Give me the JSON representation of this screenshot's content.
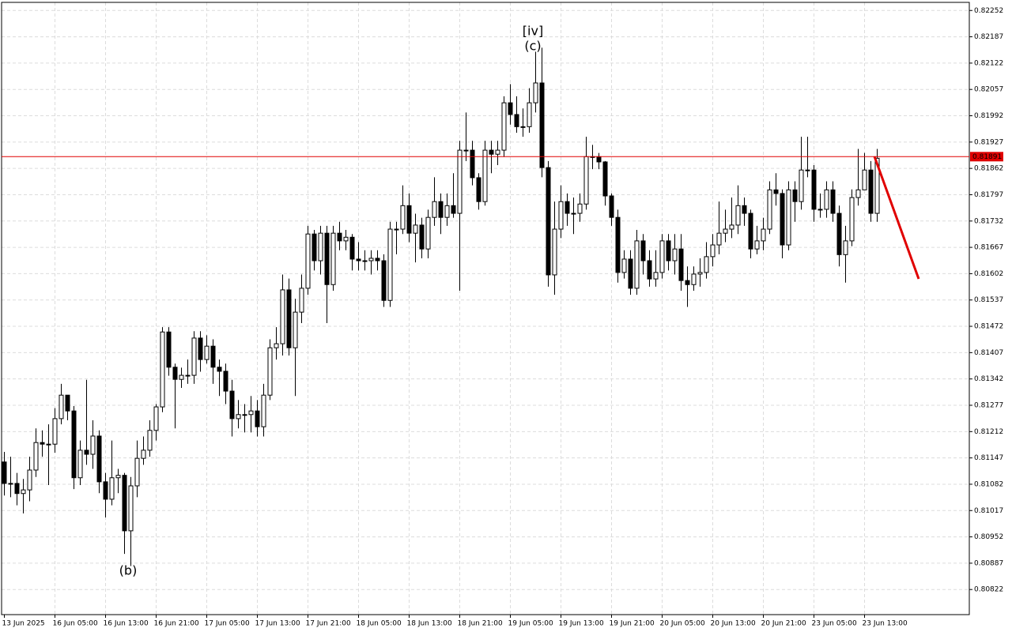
{
  "chart_data": {
    "type": "candlestick",
    "categories": [
      "13 Jun 2025",
      null,
      null,
      null,
      null,
      null,
      null,
      null,
      "16 Jun 05:00",
      null,
      null,
      null,
      null,
      null,
      null,
      null,
      "16 Jun 13:00",
      null,
      null,
      null,
      null,
      null,
      null,
      null,
      "16 Jun 21:00",
      null,
      null,
      null,
      null,
      null,
      null,
      null,
      "17 Jun 05:00",
      null,
      null,
      null,
      null,
      null,
      null,
      null,
      "17 Jun 13:00",
      null,
      null,
      null,
      null,
      null,
      null,
      null,
      "17 Jun 21:00",
      null,
      null,
      null,
      null,
      null,
      null,
      null,
      "18 Jun 05:00",
      null,
      null,
      null,
      null,
      null,
      null,
      null,
      "18 Jun 13:00",
      null,
      null,
      null,
      null,
      null,
      null,
      null,
      "18 Jun 21:00",
      null,
      null,
      null,
      null,
      null,
      null,
      null,
      "19 Jun 05:00",
      null,
      null,
      null,
      null,
      null,
      null,
      null,
      "19 Jun 13:00",
      null,
      null,
      null,
      null,
      null,
      null,
      null,
      "19 Jun 21:00",
      null,
      null,
      null,
      null,
      null,
      null,
      null,
      "20 Jun 05:00",
      null,
      null,
      null,
      null,
      null,
      null,
      null,
      "20 Jun 13:00",
      null,
      null,
      null,
      null,
      null,
      null,
      null,
      "20 Jun 21:00",
      null,
      null,
      null,
      null,
      null,
      null,
      null,
      "23 Jun 05:00",
      null,
      null,
      null,
      null,
      null,
      null,
      null,
      "23 Jun 13:00",
      null,
      null
    ],
    "open": [
      0.81137,
      0.81084,
      0.81084,
      0.81059,
      0.81068,
      0.81117,
      0.81185,
      0.81181,
      0.81181,
      0.81244,
      0.81302,
      0.81263,
      0.81098,
      0.81166,
      0.81156,
      0.81201,
      0.81088,
      0.81045,
      0.81098,
      0.81104,
      0.80967,
      0.81078,
      0.81146,
      0.81166,
      0.81215,
      0.81273,
      0.81458,
      0.81371,
      0.81341,
      0.81351,
      0.81351,
      0.81443,
      0.8139,
      0.81423,
      0.81371,
      0.81361,
      0.81312,
      0.81244,
      0.81254,
      0.81254,
      0.81263,
      0.81224,
      0.81302,
      0.81419,
      0.81429,
      0.81562,
      0.81419,
      0.81507,
      0.81566,
      0.817,
      0.81634,
      0.81702,
      0.81575,
      0.81702,
      0.81683,
      0.81692,
      0.81638,
      0.81634,
      0.81634,
      0.8164,
      0.81634,
      0.81536,
      0.81712,
      0.81712,
      0.8177,
      0.81702,
      0.81722,
      0.81663,
      0.81741,
      0.8178,
      0.81741,
      0.8177,
      0.81751,
      0.81907,
      0.81907,
      0.81839,
      0.8178,
      0.81907,
      0.81897,
      0.81907,
      0.82024,
      0.81995,
      0.81965,
      0.81965,
      0.82024,
      0.82073,
      0.81864,
      0.81599,
      0.81712,
      0.8178,
      0.81751,
      0.81751,
      0.81774,
      0.81891,
      0.81891,
      0.81878,
      0.81794,
      0.81741,
      0.81605,
      0.81638,
      0.81566,
      0.81683,
      0.81634,
      0.81589,
      0.81605,
      0.81683,
      0.81634,
      0.81663,
      0.81585,
      0.81575,
      0.81601,
      0.81605,
      0.81644,
      0.81673,
      0.81702,
      0.81712,
      0.81722,
      0.8177,
      0.81751,
      0.81663,
      0.81683,
      0.81712,
      0.81809,
      0.818,
      0.81673,
      0.81809,
      0.8178,
      0.81858,
      0.81858,
      0.81761,
      0.81761,
      0.81809,
      0.81751,
      0.81649,
      0.81683,
      0.8179,
      0.81809,
      0.81858,
      0.81751
    ],
    "high": [
      0.81162,
      0.8115,
      0.8111,
      0.81095,
      0.8115,
      0.8122,
      0.81215,
      0.8123,
      0.8127,
      0.8133,
      0.8129,
      0.81275,
      0.8119,
      0.8134,
      0.8124,
      0.81215,
      0.8111,
      0.8119,
      0.8112,
      0.8111,
      0.811,
      0.8119,
      0.812,
      0.8124,
      0.8128,
      0.8147,
      0.8147,
      0.8138,
      0.8137,
      0.8139,
      0.8146,
      0.8146,
      0.8145,
      0.8144,
      0.8139,
      0.8138,
      0.8134,
      0.8129,
      0.8128,
      0.813,
      0.8129,
      0.8133,
      0.8144,
      0.8147,
      0.816,
      0.8159,
      0.8154,
      0.816,
      0.8172,
      0.8171,
      0.8172,
      0.8172,
      0.8172,
      0.8173,
      0.8171,
      0.817,
      0.8168,
      0.8166,
      0.8166,
      0.8166,
      0.8165,
      0.8173,
      0.8173,
      0.8182,
      0.818,
      0.8175,
      0.8174,
      0.8176,
      0.8184,
      0.818,
      0.818,
      0.8185,
      0.8193,
      0.82,
      0.8193,
      0.8185,
      0.8193,
      0.8193,
      0.8193,
      0.8204,
      0.8207,
      0.8204,
      0.8201,
      0.8206,
      0.8215,
      0.8216,
      0.8188,
      0.8178,
      0.8182,
      0.818,
      0.8179,
      0.818,
      0.8194,
      0.8192,
      0.819,
      0.8188,
      0.818,
      0.8176,
      0.8166,
      0.8166,
      0.8171,
      0.817,
      0.8166,
      0.8166,
      0.817,
      0.817,
      0.817,
      0.817,
      0.8162,
      0.8162,
      0.8164,
      0.8168,
      0.817,
      0.8178,
      0.8176,
      0.8179,
      0.8182,
      0.8179,
      0.8176,
      0.8172,
      0.8174,
      0.8183,
      0.8185,
      0.8181,
      0.8183,
      0.8183,
      0.8194,
      0.8194,
      0.8187,
      0.818,
      0.8183,
      0.8183,
      0.8177,
      0.8172,
      0.8181,
      0.8191,
      0.819,
      0.8188,
      0.8191
    ],
    "low": [
      0.81054,
      0.8105,
      0.8103,
      0.8101,
      0.8104,
      0.811,
      0.8115,
      0.8108,
      0.8116,
      0.8123,
      0.8124,
      0.8107,
      0.8108,
      0.8113,
      0.8112,
      0.8106,
      0.81,
      0.8103,
      0.8106,
      0.8091,
      0.8088,
      0.8105,
      0.8113,
      0.8115,
      0.8119,
      0.8126,
      0.8135,
      0.8122,
      0.8132,
      0.8133,
      0.8133,
      0.8136,
      0.8138,
      0.8133,
      0.813,
      0.8128,
      0.812,
      0.8122,
      0.8121,
      0.8121,
      0.812,
      0.812,
      0.8129,
      0.8139,
      0.814,
      0.814,
      0.813,
      0.8148,
      0.8155,
      0.8161,
      0.816,
      0.8148,
      0.8156,
      0.8166,
      0.8166,
      0.8161,
      0.8161,
      0.8161,
      0.816,
      0.8161,
      0.8152,
      0.8152,
      0.8165,
      0.817,
      0.8168,
      0.8163,
      0.8164,
      0.8164,
      0.8172,
      0.817,
      0.8172,
      0.8174,
      0.8156,
      0.8188,
      0.8182,
      0.8176,
      0.8177,
      0.8185,
      0.8187,
      0.8189,
      0.8197,
      0.8195,
      0.8194,
      0.8195,
      0.82,
      0.8184,
      0.8157,
      0.8155,
      0.8169,
      0.8172,
      0.817,
      0.8173,
      0.8176,
      0.8186,
      0.8186,
      0.8177,
      0.8172,
      0.8158,
      0.8159,
      0.8155,
      0.8155,
      0.816,
      0.8157,
      0.8157,
      0.8159,
      0.8161,
      0.816,
      0.8156,
      0.8152,
      0.8156,
      0.8157,
      0.8159,
      0.8162,
      0.8165,
      0.8168,
      0.8169,
      0.817,
      0.8172,
      0.8164,
      0.8165,
      0.8166,
      0.817,
      0.8177,
      0.8164,
      0.8166,
      0.8173,
      0.8176,
      0.8184,
      0.8173,
      0.8174,
      0.8174,
      0.8173,
      0.8162,
      0.8158,
      0.8167,
      0.8177,
      0.8182,
      0.8173,
      0.8173
    ],
    "close": [
      0.81084,
      0.81084,
      0.81059,
      0.81068,
      0.81117,
      0.81185,
      0.81181,
      0.81181,
      0.81244,
      0.81302,
      0.81263,
      0.81098,
      0.81166,
      0.81156,
      0.81201,
      0.81088,
      0.81045,
      0.81098,
      0.81104,
      0.80967,
      0.81078,
      0.81146,
      0.81166,
      0.81215,
      0.81273,
      0.81458,
      0.81371,
      0.81341,
      0.81351,
      0.81351,
      0.81443,
      0.8139,
      0.81423,
      0.81371,
      0.81361,
      0.81312,
      0.81244,
      0.81254,
      0.81254,
      0.81263,
      0.81224,
      0.81302,
      0.81419,
      0.81429,
      0.81562,
      0.81419,
      0.81507,
      0.81566,
      0.817,
      0.81634,
      0.81702,
      0.81575,
      0.81702,
      0.81683,
      0.81692,
      0.81638,
      0.81634,
      0.81634,
      0.8164,
      0.81634,
      0.81536,
      0.81712,
      0.81712,
      0.8177,
      0.81702,
      0.81722,
      0.81663,
      0.81741,
      0.8178,
      0.81741,
      0.8177,
      0.81751,
      0.81907,
      0.81907,
      0.81839,
      0.8178,
      0.81907,
      0.81897,
      0.81907,
      0.82024,
      0.81995,
      0.81965,
      0.81965,
      0.82024,
      0.82073,
      0.81864,
      0.81599,
      0.81712,
      0.8178,
      0.81751,
      0.81751,
      0.81774,
      0.81891,
      0.81891,
      0.81878,
      0.81794,
      0.81741,
      0.81605,
      0.81638,
      0.81566,
      0.81683,
      0.81634,
      0.81589,
      0.81605,
      0.81683,
      0.81634,
      0.81663,
      0.81585,
      0.81575,
      0.81601,
      0.81605,
      0.81644,
      0.81673,
      0.81702,
      0.81712,
      0.81722,
      0.8177,
      0.81751,
      0.81663,
      0.81683,
      0.81712,
      0.81809,
      0.818,
      0.81673,
      0.81809,
      0.8178,
      0.81858,
      0.81858,
      0.81761,
      0.81761,
      0.81809,
      0.81751,
      0.81649,
      0.81683,
      0.8179,
      0.81809,
      0.81858,
      0.81751,
      0.81887
    ],
    "up_color": "#ffffff",
    "down_color": "#000000",
    "ylim": [
      0.8076,
      0.82272
    ],
    "yticks": [
      0.82252,
      0.82187,
      0.82122,
      0.82057,
      0.81992,
      0.81927,
      0.81862,
      0.81797,
      0.81732,
      0.81667,
      0.81602,
      0.81537,
      0.81472,
      0.81407,
      0.81342,
      0.81277,
      0.81212,
      0.81147,
      0.81082,
      0.81017,
      0.80952,
      0.80887,
      0.80822
    ],
    "grid": true,
    "current_price": 0.81891,
    "current_price_color": "#e00000",
    "annotations": [
      {
        "text": "[iv]",
        "color": "#3cb043"
      },
      {
        "text": "(c)",
        "color": "#2b3fd8"
      },
      {
        "text": "(b)",
        "color": "#2b3fd8"
      }
    ]
  }
}
